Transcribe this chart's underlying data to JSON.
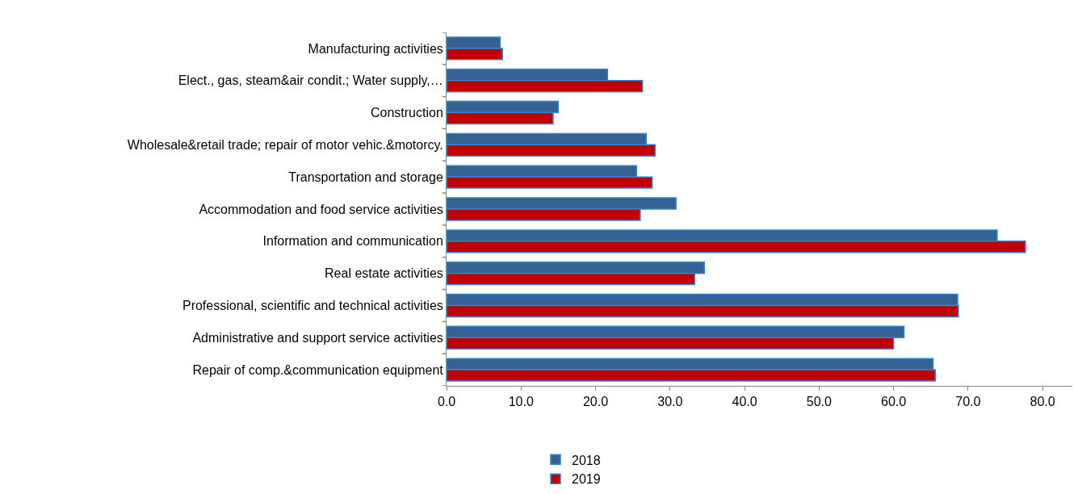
{
  "chart_data": {
    "type": "bar",
    "orientation": "horizontal",
    "categories": [
      "Manufacturing activities",
      "Elect., gas, steam&air condit.; Water supply,…",
      "Construction",
      "Wholesale&retail trade; repair of motor vehic.&motorcy.",
      "Transportation and storage",
      "Accommodation and food service activities",
      "Information and communication",
      "Real estate activities",
      "Professional, scientific and technical activities",
      "Administrative and support service activities",
      "Repair of comp.&communication equipment"
    ],
    "series": [
      {
        "name": "2018",
        "color": "#376092",
        "values": [
          7.2,
          21.6,
          15.0,
          26.8,
          25.5,
          30.8,
          73.9,
          34.6,
          68.6,
          61.4,
          65.3
        ]
      },
      {
        "name": "2019",
        "color": "#c00000",
        "values": [
          7.5,
          26.3,
          14.3,
          28.0,
          27.6,
          26.0,
          77.7,
          33.3,
          68.7,
          60.0,
          65.6
        ]
      }
    ],
    "xlim": [
      0,
      84
    ],
    "xticks": [
      {
        "value": 0,
        "label": "0.0"
      },
      {
        "value": 10,
        "label": "10.0"
      },
      {
        "value": 20,
        "label": "20.0"
      },
      {
        "value": 30,
        "label": "30.0"
      },
      {
        "value": 40,
        "label": "40.0"
      },
      {
        "value": 50,
        "label": "50.0"
      },
      {
        "value": 60,
        "label": "60.0"
      },
      {
        "value": 70,
        "label": "70.0"
      },
      {
        "value": 80,
        "label": "80.0"
      }
    ],
    "grid": false,
    "legend": "bottom"
  }
}
